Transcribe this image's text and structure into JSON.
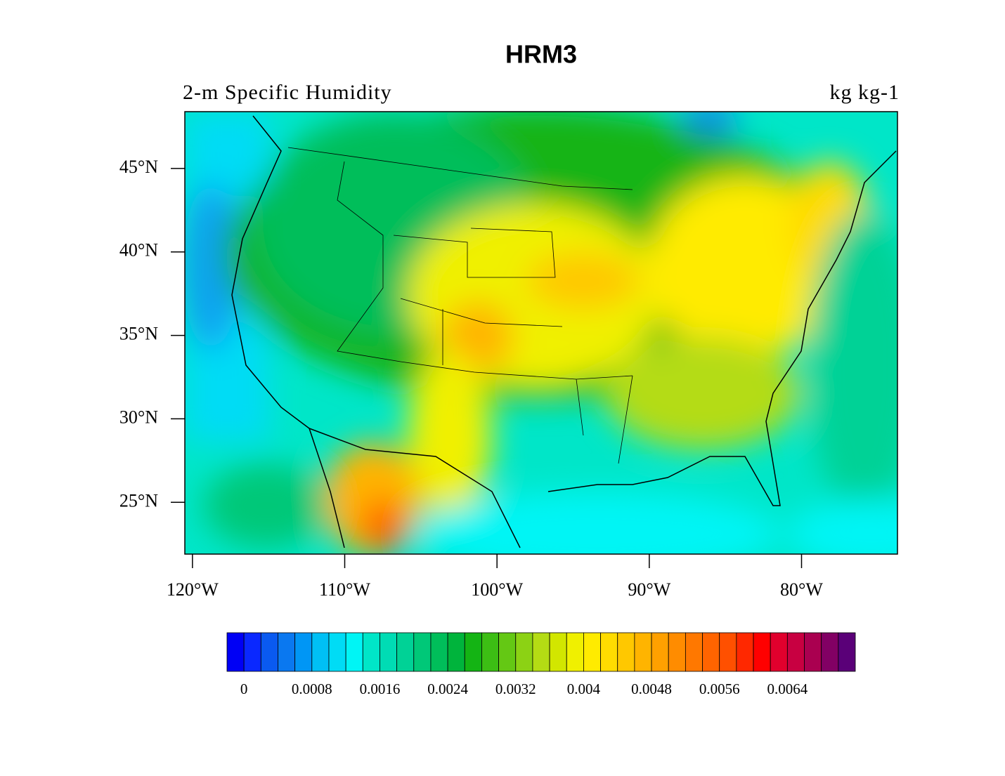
{
  "map": {
    "title": "HRM3",
    "left_string": "2-m Specific Humidity",
    "right_string": "kg kg-1",
    "xlim": [
      -120.5,
      -73.7
    ],
    "ylim": [
      21.9,
      48.4
    ],
    "xticks": [
      {
        "value": -120,
        "label": "120°W"
      },
      {
        "value": -110,
        "label": "110°W"
      },
      {
        "value": -100,
        "label": "100°W"
      },
      {
        "value": -90,
        "label": "90°W"
      },
      {
        "value": -80,
        "label": "80°W"
      }
    ],
    "yticks": [
      {
        "value": 25,
        "label": "25°N"
      },
      {
        "value": 30,
        "label": "30°N"
      },
      {
        "value": 35,
        "label": "35°N"
      },
      {
        "value": 40,
        "label": "40°N"
      },
      {
        "value": 45,
        "label": "45°N"
      }
    ],
    "colorbar": {
      "colors": [
        "#0000f5",
        "#0a28ff",
        "#0a5af0",
        "#0a78f0",
        "#0096f5",
        "#00c0f5",
        "#00dcf5",
        "#00f5f5",
        "#00e6c8",
        "#00dcb4",
        "#00d296",
        "#00c878",
        "#00be5a",
        "#00b43c",
        "#14b414",
        "#3cbe14",
        "#64c814",
        "#8cd214",
        "#b4dc14",
        "#d2e600",
        "#f0f000",
        "#ffeb00",
        "#ffdc00",
        "#ffc800",
        "#ffb400",
        "#ffa000",
        "#ff8c00",
        "#ff7800",
        "#ff6400",
        "#ff5000",
        "#ff2800",
        "#ff0000",
        "#e1002d",
        "#c80041",
        "#aa0050",
        "#820064",
        "#5a0078"
      ],
      "labels": [
        0,
        0.0008,
        0.0016,
        0.0024,
        0.0032,
        0.004,
        0.0048,
        0.0056,
        0.0064
      ]
    }
  }
}
